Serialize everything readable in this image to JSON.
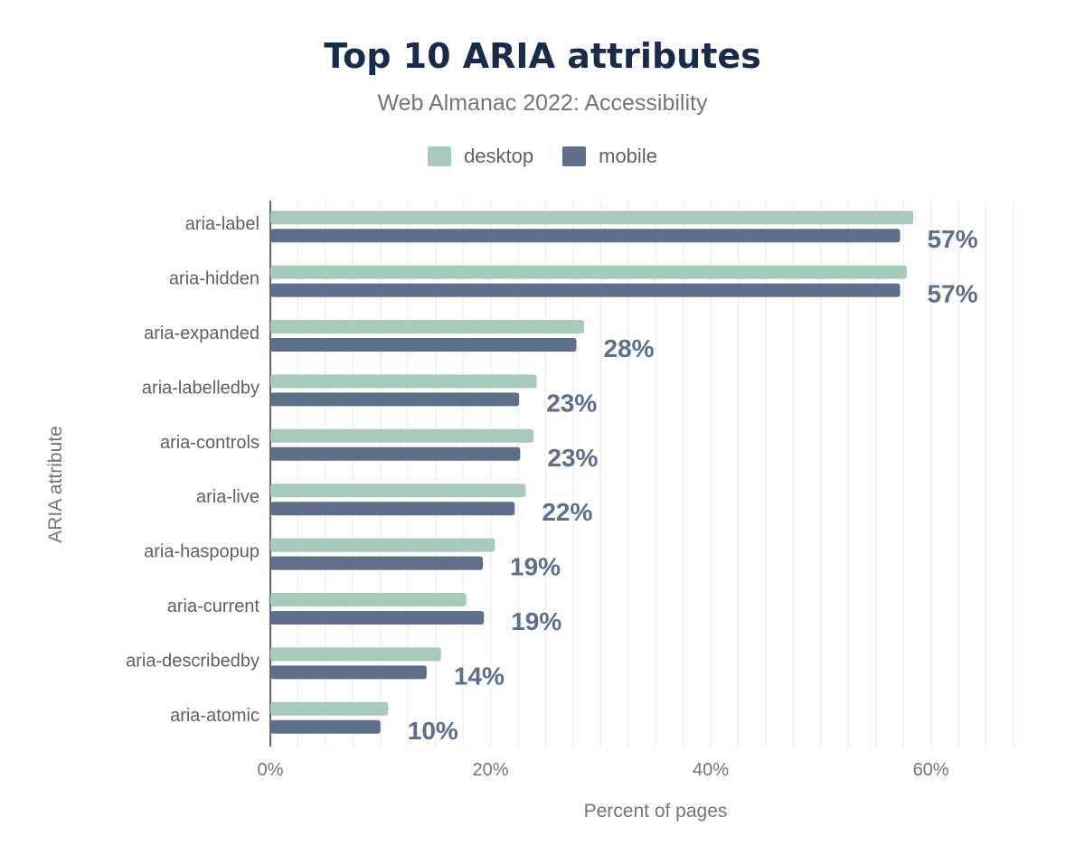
{
  "chart_data": {
    "type": "bar",
    "orientation": "horizontal",
    "title": "Top 10 ARIA attributes",
    "subtitle": "Web Almanac 2022: Accessibility",
    "xlabel": "Percent of pages",
    "ylabel": "ARIA attribute",
    "xlim": [
      0,
      68
    ],
    "x_ticks": [
      "0%",
      "20%",
      "40%",
      "60%"
    ],
    "x_tick_values": [
      0,
      20,
      40,
      60
    ],
    "grid": true,
    "legend_position": "top",
    "categories": [
      "aria-label",
      "aria-hidden",
      "aria-expanded",
      "aria-labelledby",
      "aria-controls",
      "aria-live",
      "aria-haspopup",
      "aria-current",
      "aria-describedby",
      "aria-atomic"
    ],
    "series": [
      {
        "name": "desktop",
        "color": "#a8cabb",
        "values": [
          58.4,
          57.8,
          28.5,
          24.2,
          23.9,
          23.2,
          20.4,
          17.8,
          15.5,
          10.7
        ]
      },
      {
        "name": "mobile",
        "color": "#5f6f8a",
        "values": [
          57.2,
          57.2,
          27.8,
          22.6,
          22.7,
          22.2,
          19.3,
          19.4,
          14.2,
          10.0
        ],
        "data_labels": [
          "57%",
          "57%",
          "28%",
          "23%",
          "23%",
          "22%",
          "19%",
          "19%",
          "14%",
          "10%"
        ]
      }
    ]
  }
}
